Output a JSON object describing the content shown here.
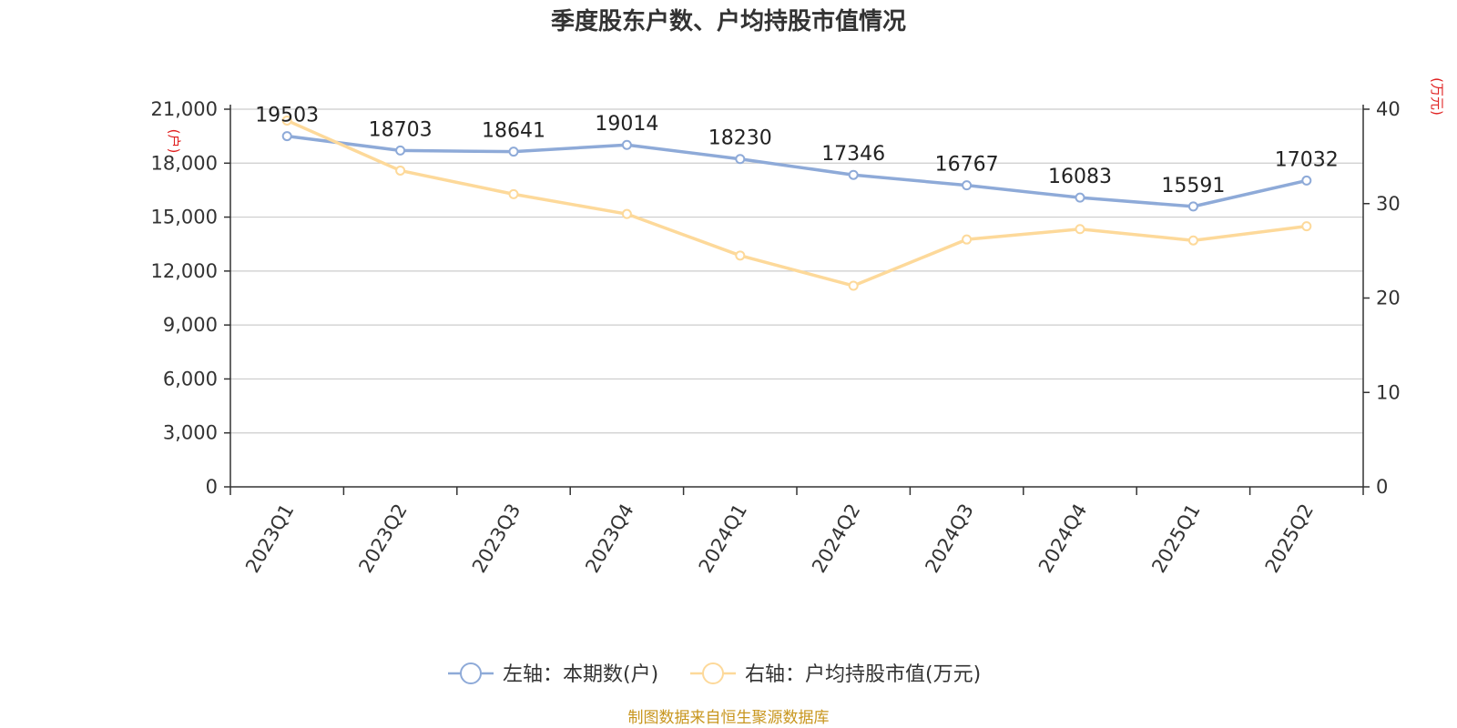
{
  "chart_data": {
    "type": "line",
    "title": "季度股东户数、户均持股市值情况",
    "categories": [
      "2023Q1",
      "2023Q2",
      "2023Q3",
      "2023Q4",
      "2024Q1",
      "2024Q2",
      "2024Q3",
      "2024Q4",
      "2025Q1",
      "2025Q2"
    ],
    "left_axis": {
      "unit": "(户)",
      "ylim": [
        0,
        21000
      ],
      "ticks": [
        "0",
        "3,000",
        "6,000",
        "9,000",
        "12,000",
        "15,000",
        "18,000",
        "21,000"
      ],
      "tick_values": [
        0,
        3000,
        6000,
        9000,
        12000,
        15000,
        18000,
        21000
      ]
    },
    "right_axis": {
      "unit": "(万元)",
      "ylim": [
        0,
        40
      ],
      "ticks": [
        "0",
        "10",
        "20",
        "30",
        "40"
      ],
      "tick_values": [
        0,
        10,
        20,
        30,
        40
      ]
    },
    "series": [
      {
        "name": "左轴：本期数(户)",
        "axis": "left",
        "color": "#8eaad8",
        "values": [
          19503,
          18703,
          18641,
          19014,
          18230,
          17346,
          16767,
          16083,
          15591,
          17032
        ],
        "labels": [
          "19503",
          "18703",
          "18641",
          "19014",
          "18230",
          "17346",
          "16767",
          "16083",
          "15591",
          "17032"
        ]
      },
      {
        "name": "右轴：户均持股市值(万元)",
        "axis": "right",
        "color": "#fdd99a",
        "values": [
          38.8,
          33.5,
          31.0,
          28.9,
          24.5,
          21.3,
          26.2,
          27.3,
          26.1,
          27.6
        ]
      }
    ],
    "grid": true,
    "legend_position": "bottom-center",
    "source": "制图数据来自恒生聚源数据库"
  }
}
